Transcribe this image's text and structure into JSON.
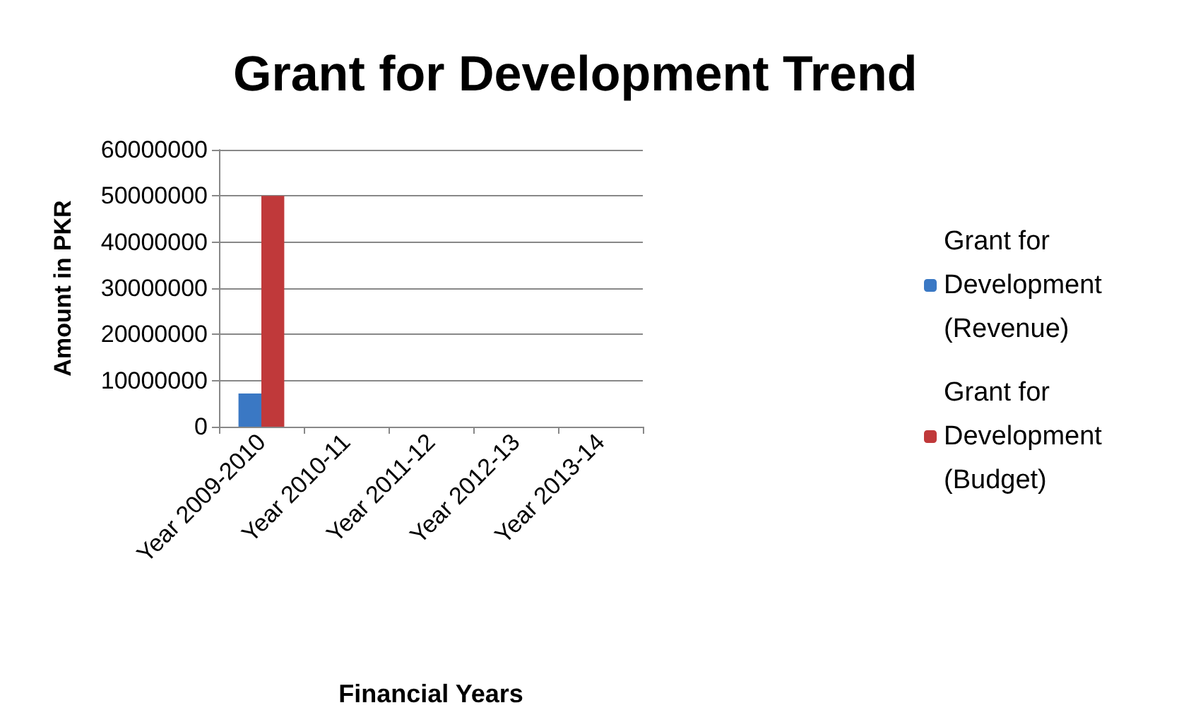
{
  "chart_data": {
    "type": "bar",
    "title": "Grant for Development Trend",
    "xlabel": "Financial Years",
    "ylabel": "Amount in PKR",
    "categories": [
      "Year 2009-2010",
      "Year 2010-11",
      "Year 2011-12",
      "Year 2012-13",
      "Year 2013-14"
    ],
    "series": [
      {
        "name": "Grant for Development (Revenue)",
        "color": "#3a78c4",
        "values": [
          7200000,
          null,
          null,
          null,
          null
        ]
      },
      {
        "name": "Grant for Development (Budget)",
        "color": "#c0393a",
        "values": [
          50000000,
          null,
          null,
          null,
          null
        ]
      }
    ],
    "ylim": [
      0,
      60000000
    ],
    "yticks": [
      0,
      10000000,
      20000000,
      30000000,
      40000000,
      50000000,
      60000000
    ],
    "grid": "y",
    "legend": "right"
  }
}
